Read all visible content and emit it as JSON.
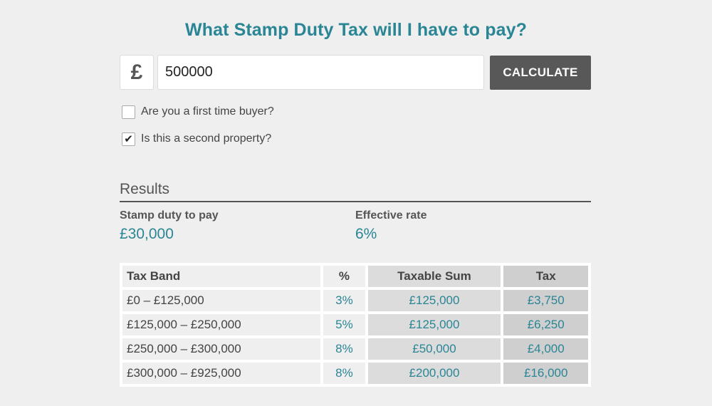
{
  "title": "What Stamp Duty Tax will I have to pay?",
  "currency_symbol": "£",
  "amount_value": "500000",
  "calculate_label": "CALCULATE",
  "checks": {
    "first_time": {
      "label": "Are you a first time buyer?",
      "checked": false
    },
    "second_property": {
      "label": "Is this a second property?",
      "checked": true,
      "mark": "✔"
    }
  },
  "results": {
    "heading": "Results",
    "duty_label": "Stamp duty to pay",
    "duty_value": "£30,000",
    "rate_label": "Effective rate",
    "rate_value": "6%"
  },
  "table": {
    "headers": [
      "Tax Band",
      "%",
      "Taxable Sum",
      "Tax"
    ],
    "rows": [
      [
        "£0 – £125,000",
        "3%",
        "£125,000",
        "£3,750"
      ],
      [
        "£125,000 – £250,000",
        "5%",
        "£125,000",
        "£6,250"
      ],
      [
        "£250,000 – £300,000",
        "8%",
        "£50,000",
        "£4,000"
      ],
      [
        "£300,000 – £925,000",
        "8%",
        "£200,000",
        "£16,000"
      ]
    ]
  },
  "colors": {
    "accent": "#2a8595",
    "button": "#585858",
    "background": "#efefef"
  }
}
